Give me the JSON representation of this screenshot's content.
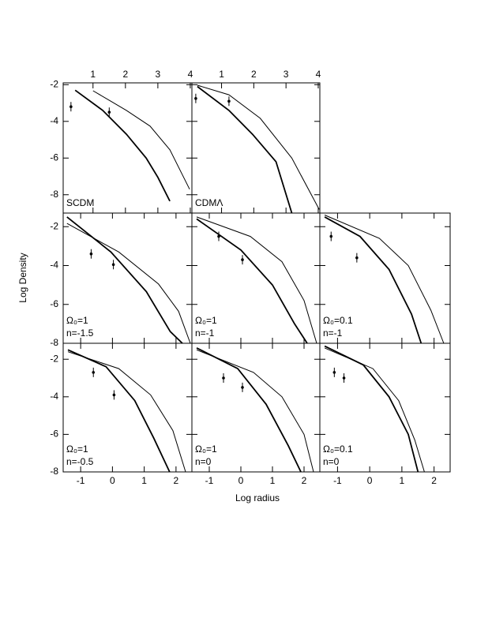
{
  "axis_labels": {
    "x": "Log radius",
    "y": "Log Density"
  },
  "chart_data": [
    {
      "type": "line",
      "labels": [
        "SCDM"
      ],
      "xaxis_position": "top",
      "xlim": [
        0.08,
        4.05
      ],
      "ylim": [
        -9,
        -1.9
      ],
      "xticks": [
        1,
        2,
        3,
        4
      ],
      "yticks": [
        -2,
        -4,
        -6,
        -8
      ],
      "series": [
        {
          "color": "#000000",
          "x": [
            0.45,
            1.3,
            2.03,
            2.64,
            3.0,
            3.37
          ],
          "values": [
            -2.3,
            -3.4,
            -4.7,
            -6.0,
            -7.05,
            -8.35
          ]
        },
        {
          "color": "#000000",
          "x": [
            1.0,
            2.03,
            2.76,
            3.37,
            3.98
          ],
          "values": [
            -2.33,
            -3.4,
            -4.26,
            -5.55,
            -7.7
          ]
        }
      ],
      "markers": {
        "x": [
          0.32,
          1.5
        ],
        "values": [
          -3.2,
          -3.5
        ]
      }
    },
    {
      "type": "line",
      "labels": [
        "CDMΛ"
      ],
      "xaxis_position": "top",
      "xlim": [
        0.08,
        4.05
      ],
      "ylim": [
        -9,
        -1.9
      ],
      "xticks": [
        1,
        2,
        3,
        4
      ],
      "yticks": [
        -2,
        -4,
        -6,
        -8
      ],
      "series": [
        {
          "color": "#000000",
          "x": [
            0.25,
            1.23,
            1.96,
            2.69,
            3.18
          ],
          "values": [
            -2.1,
            -3.4,
            -4.7,
            -6.2,
            -9.0
          ]
        },
        {
          "color": "#000000",
          "x": [
            0.25,
            1.23,
            2.2,
            3.18,
            4.03
          ],
          "values": [
            -2.03,
            -2.55,
            -3.83,
            -6.0,
            -8.8
          ]
        }
      ],
      "markers": {
        "x": [
          0.2,
          1.23
        ],
        "values": [
          -2.75,
          -2.9
        ]
      }
    },
    {
      "type": "line",
      "labels": [
        "Ω₀=1",
        "n=-1.5"
      ],
      "xaxis_position": "bottom",
      "xlim": [
        -1.55,
        2.5
      ],
      "ylim": [
        -8,
        -1.3
      ],
      "xticks": [
        -1,
        0,
        1,
        2
      ],
      "yticks": [
        -2,
        -4,
        -6,
        -8
      ],
      "series": [
        {
          "color": "#000000",
          "x": [
            -1.43,
            -0.05,
            1.07,
            1.82,
            2.2
          ],
          "values": [
            -1.5,
            -3.3,
            -5.35,
            -7.4,
            -8
          ]
        },
        {
          "color": "#000000",
          "x": [
            -1.43,
            0.2,
            1.45,
            2.08,
            2.45
          ],
          "values": [
            -1.83,
            -3.3,
            -4.95,
            -6.35,
            -8
          ]
        }
      ],
      "markers": {
        "x": [
          -0.67,
          0.03
        ],
        "values": [
          -3.4,
          -3.95
        ]
      }
    },
    {
      "type": "line",
      "labels": [
        "Ω₀=1",
        "n=-1"
      ],
      "xaxis_position": "bottom",
      "xlim": [
        -1.55,
        2.5
      ],
      "ylim": [
        -8,
        -1.3
      ],
      "xticks": [
        -1,
        0,
        1,
        2
      ],
      "yticks": [
        -2,
        -4,
        -6,
        -8
      ],
      "series": [
        {
          "color": "#000000",
          "x": [
            -1.4,
            0,
            1,
            1.7,
            2.1
          ],
          "values": [
            -1.6,
            -3.2,
            -5.0,
            -7.0,
            -8
          ]
        },
        {
          "color": "#000000",
          "x": [
            -1.4,
            0.3,
            1.3,
            2.0,
            2.4
          ],
          "values": [
            -1.5,
            -2.5,
            -3.8,
            -5.8,
            -8
          ]
        }
      ],
      "markers": {
        "x": [
          -0.7,
          0.05
        ],
        "values": [
          -2.5,
          -3.7
        ]
      }
    },
    {
      "type": "line",
      "labels": [
        "Ω₀=0.1",
        "n=-1"
      ],
      "xaxis_position": "bottom",
      "xlim": [
        -1.55,
        2.5
      ],
      "ylim": [
        -8,
        -1.3
      ],
      "xticks": [
        -1,
        0,
        1,
        2
      ],
      "yticks": [
        -2,
        -4,
        -6,
        -8
      ],
      "series": [
        {
          "color": "#000000",
          "x": [
            -1.4,
            -0.3,
            0.6,
            1.3,
            1.6
          ],
          "values": [
            -1.5,
            -2.5,
            -4.2,
            -6.5,
            -8
          ]
        },
        {
          "color": "#000000",
          "x": [
            -1.4,
            0.3,
            1.2,
            1.9,
            2.3
          ],
          "values": [
            -1.4,
            -2.6,
            -4.0,
            -6.3,
            -8
          ]
        }
      ],
      "markers": {
        "x": [
          -1.2,
          -0.4
        ],
        "values": [
          -2.5,
          -3.6
        ]
      }
    },
    {
      "type": "line",
      "labels": [
        "Ω₀=1",
        "n=-0.5"
      ],
      "xaxis_position": "bottom",
      "xlim": [
        -1.55,
        2.5
      ],
      "ylim": [
        -8,
        -1.15
      ],
      "xticks": [
        -1,
        0,
        1,
        2
      ],
      "yticks": [
        -2,
        -4,
        -6,
        -8
      ],
      "series": [
        {
          "color": "#000000",
          "x": [
            -1.4,
            -0.2,
            0.7,
            1.3,
            1.8
          ],
          "values": [
            -1.5,
            -2.4,
            -4.2,
            -6.2,
            -8
          ]
        },
        {
          "color": "#000000",
          "x": [
            -1.4,
            0.2,
            1.2,
            1.9,
            2.3
          ],
          "values": [
            -1.6,
            -2.5,
            -3.9,
            -5.8,
            -8
          ]
        }
      ],
      "markers": {
        "x": [
          -0.6,
          0.05
        ],
        "values": [
          -2.7,
          -3.9
        ]
      }
    },
    {
      "type": "line",
      "labels": [
        "Ω₀=1",
        "n=0"
      ],
      "xaxis_position": "bottom",
      "xlim": [
        -1.55,
        2.5
      ],
      "ylim": [
        -8,
        -1.15
      ],
      "xticks": [
        -1,
        0,
        1,
        2
      ],
      "yticks": [
        -2,
        -4,
        -6,
        -8
      ],
      "series": [
        {
          "color": "#000000",
          "x": [
            -1.4,
            -0.1,
            0.8,
            1.5,
            1.9
          ],
          "values": [
            -1.4,
            -2.5,
            -4.4,
            -6.6,
            -8
          ]
        },
        {
          "color": "#000000",
          "x": [
            -1.4,
            0.4,
            1.3,
            2.0,
            2.3
          ],
          "values": [
            -1.5,
            -2.7,
            -4.0,
            -6.0,
            -8
          ]
        }
      ],
      "markers": {
        "x": [
          -0.55,
          0.05
        ],
        "values": [
          -3.0,
          -3.5
        ]
      }
    },
    {
      "type": "line",
      "labels": [
        "Ω₀=0.1",
        "n=0"
      ],
      "xaxis_position": "bottom",
      "xlim": [
        -1.55,
        2.5
      ],
      "ylim": [
        -8,
        -1.15
      ],
      "xticks": [
        -1,
        0,
        1,
        2
      ],
      "yticks": [
        -2,
        -4,
        -6,
        -8
      ],
      "series": [
        {
          "color": "#000000",
          "x": [
            -1.4,
            -0.2,
            0.6,
            1.2,
            1.5
          ],
          "values": [
            -1.3,
            -2.3,
            -4.0,
            -6.0,
            -8
          ]
        },
        {
          "color": "#000000",
          "x": [
            -1.4,
            0.1,
            0.9,
            1.4,
            1.7
          ],
          "values": [
            -1.4,
            -2.5,
            -4.2,
            -6.3,
            -8
          ]
        }
      ],
      "markers": {
        "x": [
          -1.1,
          -0.8
        ],
        "values": [
          -2.7,
          -3.0
        ]
      }
    }
  ]
}
